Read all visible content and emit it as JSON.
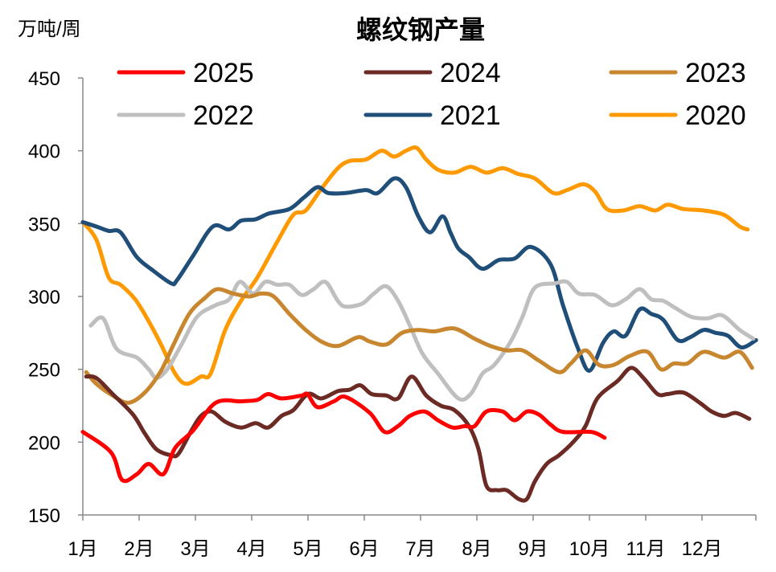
{
  "chart_data": {
    "type": "line",
    "title": "螺纹钢产量",
    "ylabel": "万吨/周",
    "xlabel": "",
    "ylim": [
      150,
      450
    ],
    "yticks": [
      "150",
      "200",
      "250",
      "300",
      "350",
      "400",
      "450"
    ],
    "xticks": [
      "1月",
      "2月",
      "3月",
      "4月",
      "5月",
      "6月",
      "7月",
      "8月",
      "9月",
      "10月",
      "11月",
      "12月"
    ],
    "xlim": [
      1,
      13
    ],
    "grid": false,
    "legend": "top",
    "series": [
      {
        "name": "2025",
        "color": "#ff0000",
        "x": [
          1.0,
          1.5,
          1.7,
          1.96,
          2.17,
          2.43,
          2.64,
          2.96,
          3.36,
          3.81,
          4.1,
          4.29,
          4.53,
          4.89,
          4.99,
          5.17,
          5.46,
          5.67,
          6.1,
          6.36,
          6.6,
          6.81,
          7.07,
          7.31,
          7.57,
          7.79,
          7.96,
          8.17,
          8.46,
          8.67,
          8.89,
          9.1,
          9.31,
          9.53,
          10.03,
          10.27
        ],
        "y": [
          207,
          193,
          174,
          178,
          185,
          178,
          196,
          208,
          227,
          228,
          229,
          233,
          230,
          232,
          233,
          224,
          228,
          231,
          220,
          207,
          211,
          218,
          221,
          215,
          210,
          211,
          211,
          221,
          221,
          215,
          221,
          219,
          212,
          207,
          207,
          203
        ]
      },
      {
        "name": "2024",
        "color": "#6b2a24",
        "x": [
          1.06,
          1.24,
          1.53,
          1.89,
          2.1,
          2.31,
          2.57,
          2.7,
          2.93,
          3.1,
          3.29,
          3.53,
          3.81,
          4.07,
          4.29,
          4.53,
          4.74,
          5.0,
          5.24,
          5.53,
          5.74,
          5.93,
          6.13,
          6.39,
          6.6,
          6.84,
          7.1,
          7.36,
          7.6,
          7.86,
          8.03,
          8.17,
          8.36,
          8.53,
          8.74,
          8.89,
          9.03,
          9.24,
          9.46,
          9.71,
          9.93,
          10.14,
          10.5,
          10.74,
          10.96,
          11.21,
          11.39,
          11.67,
          11.96,
          12.17,
          12.39,
          12.6,
          12.84
        ],
        "y": [
          245,
          244,
          233,
          219,
          206,
          195,
          191,
          192,
          208,
          218,
          221,
          214,
          210,
          213,
          210,
          218,
          222,
          233,
          230,
          235,
          236,
          239,
          233,
          232,
          230,
          245,
          232,
          225,
          222,
          211,
          195,
          170,
          167,
          167,
          161,
          161,
          173,
          185,
          191,
          200,
          211,
          230,
          242,
          251,
          244,
          233,
          233,
          234,
          227,
          221,
          218,
          220,
          216
        ]
      },
      {
        "name": "2023",
        "color": "#c8872f",
        "x": [
          1.06,
          1.24,
          1.53,
          1.81,
          2.1,
          2.39,
          2.6,
          2.89,
          3.17,
          3.39,
          3.67,
          3.96,
          4.17,
          4.39,
          4.67,
          4.96,
          5.24,
          5.53,
          5.89,
          6.1,
          6.39,
          6.67,
          6.96,
          7.24,
          7.6,
          7.96,
          8.24,
          8.53,
          8.81,
          9.1,
          9.46,
          9.67,
          9.93,
          10.17,
          10.43,
          10.71,
          11.03,
          11.27,
          11.5,
          11.74,
          12.03,
          12.39,
          12.67,
          12.89
        ],
        "y": [
          248,
          240,
          232,
          227,
          234,
          249,
          266,
          288,
          299,
          305,
          302,
          300,
          302,
          300,
          288,
          277,
          269,
          266,
          272,
          269,
          267,
          275,
          277,
          276,
          278,
          271,
          266,
          263,
          263,
          256,
          248,
          254,
          263,
          253,
          253,
          259,
          262,
          250,
          254,
          254,
          262,
          258,
          262,
          251
        ]
      },
      {
        "name": "2022",
        "color": "#bfbfbf",
        "x": [
          1.14,
          1.36,
          1.6,
          1.96,
          2.17,
          2.31,
          2.5,
          2.74,
          3.03,
          3.36,
          3.6,
          3.79,
          4.03,
          4.24,
          4.46,
          4.67,
          4.89,
          5.1,
          5.31,
          5.53,
          5.67,
          5.96,
          6.17,
          6.39,
          6.6,
          6.81,
          7.03,
          7.31,
          7.67,
          7.89,
          8.1,
          8.31,
          8.6,
          8.81,
          9.03,
          9.39,
          9.6,
          9.81,
          10.1,
          10.39,
          10.64,
          10.89,
          11.1,
          11.31,
          11.53,
          11.81,
          12.1,
          12.36,
          12.67,
          12.91
        ],
        "y": [
          280,
          285,
          264,
          258,
          250,
          244,
          250,
          266,
          286,
          294,
          298,
          310,
          302,
          310,
          308,
          308,
          301,
          305,
          310,
          297,
          293,
          295,
          302,
          307,
          297,
          280,
          261,
          247,
          230,
          233,
          247,
          253,
          269,
          286,
          306,
          309,
          310,
          302,
          301,
          294,
          298,
          305,
          298,
          297,
          292,
          286,
          285,
          287,
          277,
          271
        ]
      },
      {
        "name": "2021",
        "color": "#1f4e79",
        "x": [
          1,
          1.24,
          1.46,
          1.67,
          1.96,
          2.24,
          2.57,
          2.67,
          2.96,
          3.31,
          3.6,
          3.81,
          4.07,
          4.31,
          4.67,
          4.93,
          5.17,
          5.36,
          5.67,
          6.03,
          6.24,
          6.53,
          6.74,
          6.96,
          7.17,
          7.39,
          7.53,
          7.67,
          7.86,
          8.1,
          8.39,
          8.67,
          8.96,
          9.31,
          9.53,
          9.79,
          10,
          10.24,
          10.43,
          10.64,
          10.89,
          11.1,
          11.31,
          11.57,
          11.79,
          12.03,
          12.24,
          12.46,
          12.7,
          12.96
        ],
        "y": [
          351,
          348,
          345,
          344,
          327,
          318,
          309,
          311,
          328,
          348,
          346,
          352,
          353,
          357,
          360,
          368,
          375,
          371,
          371,
          373,
          371,
          381,
          375,
          355,
          344,
          355,
          344,
          333,
          327,
          319,
          325,
          326,
          334,
          322,
          294,
          265,
          249,
          268,
          276,
          273,
          291,
          288,
          284,
          270,
          272,
          277,
          275,
          273,
          265,
          270
        ]
      },
      {
        "name": "2020",
        "color": "#ff9900",
        "x": [
          1,
          1.24,
          1.46,
          1.67,
          1.93,
          2.17,
          2.39,
          2.64,
          2.84,
          3.1,
          3.27,
          3.53,
          3.81,
          4.1,
          4.46,
          4.74,
          4.96,
          5.24,
          5.53,
          5.74,
          6.03,
          6.31,
          6.53,
          6.74,
          6.93,
          7.1,
          7.31,
          7.6,
          7.89,
          8.17,
          8.46,
          8.74,
          9.03,
          9.36,
          9.6,
          9.89,
          10.1,
          10.31,
          10.6,
          10.89,
          11.17,
          11.39,
          11.67,
          12.03,
          12.39,
          12.67,
          12.81
        ],
        "y": [
          351,
          339,
          313,
          308,
          298,
          283,
          267,
          247,
          240,
          245,
          247,
          277,
          297,
          313,
          338,
          356,
          359,
          374,
          388,
          393,
          394,
          400,
          396,
          400,
          402,
          394,
          387,
          385,
          389,
          385,
          388,
          384,
          381,
          371,
          373,
          377,
          372,
          360,
          359,
          362,
          359,
          363,
          360,
          359,
          356,
          348,
          346
        ]
      }
    ]
  }
}
